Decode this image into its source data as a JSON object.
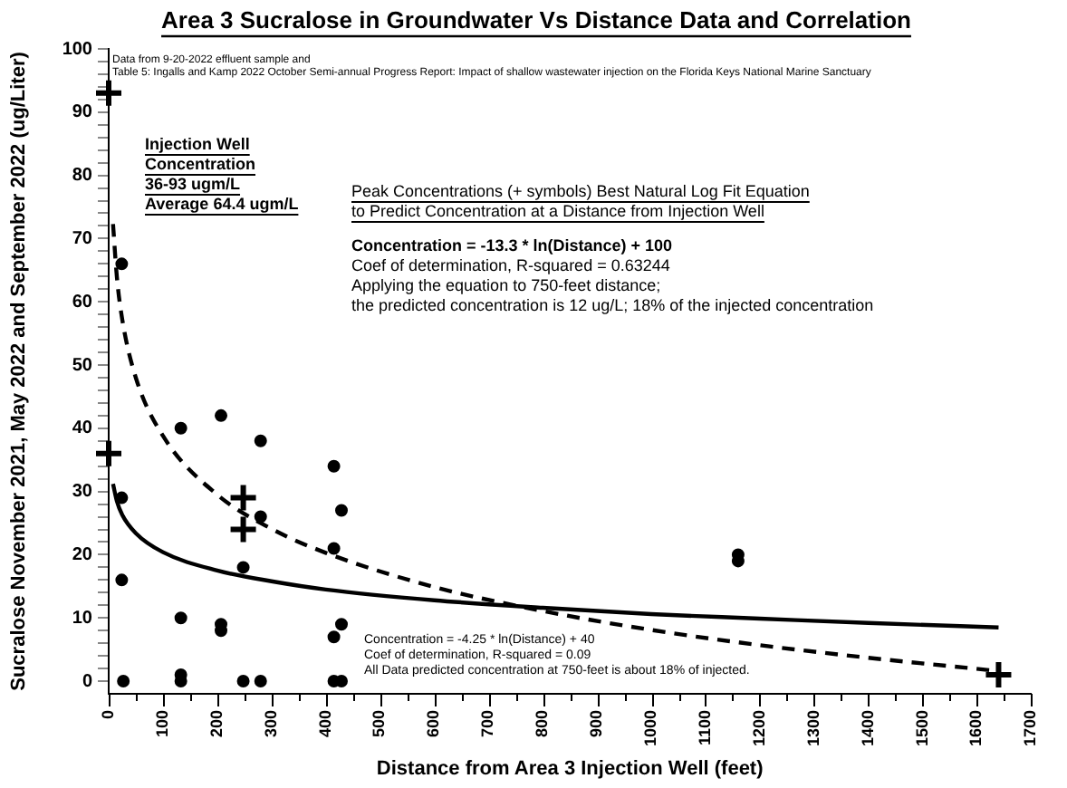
{
  "chart_data": {
    "type": "scatter",
    "title": "Area 3 Sucralose in Groundwater Vs Distance Data and Correlation",
    "xlabel": "Distance from Area 3 Injection Well (feet)",
    "ylabel": "Sucralose November 2021, May 2022 and September 2022 (ug/Liter)",
    "annotations": [
      "Data from 9-20-2022 effluent sample and\nTable 5: Ingalls and Kamp 2022 October Semi-annual Progress Report: Impact of shallow wastewater injection on the Florida Keys National Marine Sanctuary",
      "Injection Well\nConcentration\n36-93 ugm/L\nAverage 64.4 ugm/L",
      "Peak Concentrations (+ symbols) Best Natural Log Fit Equation\nto Predict Concentration at a Distance from Injection Well",
      "Concentration = -13.3 * ln(Distance) + 100\nCoef of determination, R-squared = 0.63244\nApplying the equation to 750-feet distance;\nthe predicted concentration is 12 ug/L; 18% of the injected concentration",
      "Concentration = -4.25 * ln(Distance) + 40\nCoef of determination, R-squared = 0.09\nAll Data predicted concentration at 750-feet is about 18% of injected."
    ],
    "series": [
      {
        "type": "scatter",
        "marker": "circle",
        "color": "#000000",
        "x": [
          24,
          24,
          24,
          27,
          133,
          133,
          133,
          133,
          207,
          207,
          207,
          280,
          280,
          280,
          248,
          248,
          415,
          429,
          415,
          415,
          429,
          415,
          429,
          1160,
          1160
        ],
        "values": [
          66,
          29,
          16,
          0,
          40,
          10,
          1,
          0,
          42,
          9,
          8,
          38,
          26,
          0,
          18,
          0,
          34,
          27,
          21,
          7,
          9,
          0,
          0,
          20,
          19
        ]
      },
      {
        "type": "scatter",
        "marker": "cross",
        "color": "#000000",
        "x": [
          0,
          0,
          248,
          248,
          1640
        ],
        "values": [
          93,
          36,
          29,
          24,
          1
        ]
      },
      {
        "type": "line",
        "marker": "none",
        "line_style": "dashed",
        "color": "#000000",
        "x": [
          8,
          15,
          25,
          50,
          100,
          200,
          300,
          400,
          600,
          800,
          1000,
          1200,
          1400,
          1640
        ],
        "values": [
          72.3,
          64.0,
          57.2,
          48.0,
          38.8,
          29.5,
          24.1,
          20.3,
          14.9,
          11.1,
          8.1,
          5.7,
          3.7,
          1.6
        ]
      },
      {
        "type": "line",
        "marker": "none",
        "line_style": "solid",
        "color": "#000000",
        "x": [
          8,
          15,
          25,
          50,
          100,
          200,
          300,
          400,
          600,
          800,
          1000,
          1200,
          1400,
          1640
        ],
        "values": [
          31.2,
          28.5,
          26.3,
          23.4,
          20.4,
          17.5,
          15.8,
          14.5,
          12.8,
          11.6,
          10.6,
          9.9,
          9.2,
          8.5
        ]
      }
    ],
    "xlim": [
      0,
      1700
    ],
    "xticks": [
      0,
      {
        "value": 50,
        "label": null
      },
      100,
      {
        "value": 150,
        "label": null
      },
      200,
      {
        "value": 250,
        "label": null
      },
      300,
      {
        "value": 350,
        "label": null
      },
      400,
      {
        "value": 450,
        "label": null
      },
      500,
      {
        "value": 550,
        "label": null
      },
      600,
      {
        "value": 650,
        "label": null
      },
      700,
      {
        "value": 750,
        "label": null
      },
      800,
      {
        "value": 850,
        "label": null
      },
      900,
      {
        "value": 950,
        "label": null
      },
      1000,
      {
        "value": 1050,
        "label": null
      },
      1100,
      {
        "value": 1150,
        "label": null
      },
      1200,
      {
        "value": 1250,
        "label": null
      },
      1300,
      {
        "value": 1350,
        "label": null
      },
      1400,
      {
        "value": 1450,
        "label": null
      },
      1500,
      {
        "value": 1550,
        "label": null
      },
      1600,
      {
        "value": 1650,
        "label": null
      },
      1700
    ],
    "ylim": [
      -2,
      100
    ],
    "yticks": [
      0,
      {
        "value": 2,
        "label": null
      },
      {
        "value": 4,
        "label": null
      },
      {
        "value": 6,
        "label": null
      },
      {
        "value": 8,
        "label": null
      },
      10,
      {
        "value": 12,
        "label": null
      },
      {
        "value": 14,
        "label": null
      },
      {
        "value": 16,
        "label": null
      },
      {
        "value": 18,
        "label": null
      },
      20,
      {
        "value": 22,
        "label": null
      },
      {
        "value": 24,
        "label": null
      },
      {
        "value": 26,
        "label": null
      },
      {
        "value": 28,
        "label": null
      },
      30,
      {
        "value": 32,
        "label": null
      },
      {
        "value": 34,
        "label": null
      },
      {
        "value": 36,
        "label": null
      },
      {
        "value": 38,
        "label": null
      },
      40,
      {
        "value": 42,
        "label": null
      },
      {
        "value": 44,
        "label": null
      },
      {
        "value": 46,
        "label": null
      },
      {
        "value": 48,
        "label": null
      },
      50,
      {
        "value": 52,
        "label": null
      },
      {
        "value": 54,
        "label": null
      },
      {
        "value": 56,
        "label": null
      },
      {
        "value": 58,
        "label": null
      },
      60,
      {
        "value": 62,
        "label": null
      },
      {
        "value": 64,
        "label": null
      },
      {
        "value": 66,
        "label": null
      },
      {
        "value": 68,
        "label": null
      },
      70,
      {
        "value": 72,
        "label": null
      },
      {
        "value": 74,
        "label": null
      },
      {
        "value": 76,
        "label": null
      },
      {
        "value": 78,
        "label": null
      },
      80,
      {
        "value": 82,
        "label": null
      },
      {
        "value": 84,
        "label": null
      },
      {
        "value": 86,
        "label": null
      },
      {
        "value": 88,
        "label": null
      },
      90,
      {
        "value": 92,
        "label": null
      },
      {
        "value": 94,
        "label": null
      },
      {
        "value": 96,
        "label": null
      },
      {
        "value": 98,
        "label": null
      },
      100
    ],
    "grid": false,
    "legend": false
  }
}
